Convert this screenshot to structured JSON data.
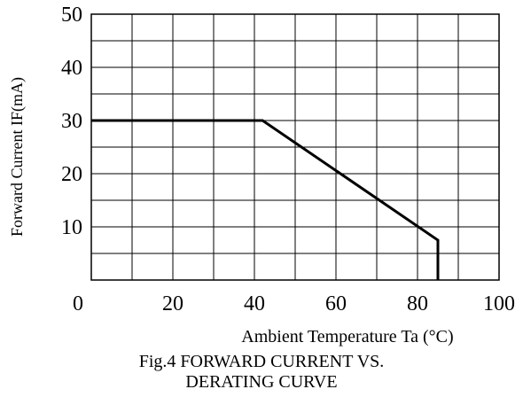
{
  "chart_data": {
    "type": "line",
    "title": "",
    "xlabel": "Ambient Temperature Ta (°C)",
    "ylabel": "Forward Current IF(mA)",
    "xlim": [
      0,
      100
    ],
    "ylim": [
      0,
      50
    ],
    "xticks": [
      0,
      20,
      40,
      60,
      80,
      100
    ],
    "yticks": [
      10,
      20,
      30,
      40,
      50
    ],
    "x_minor_grid_step": 10,
    "y_minor_grid_step": 5,
    "grid": true,
    "line_color": "#000000",
    "series": [
      {
        "x": [
          0,
          42,
          85,
          85
        ],
        "y": [
          30,
          30,
          7.5,
          0
        ]
      }
    ]
  },
  "caption": {
    "line1": "Fig.4 FORWARD CURRENT  VS.",
    "line2": "DERATING CURVE"
  }
}
